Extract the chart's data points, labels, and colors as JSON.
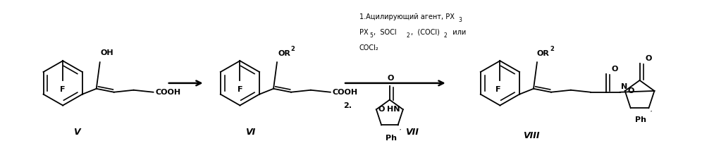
{
  "bg_color": "#ffffff",
  "fig_width": 9.96,
  "fig_height": 2.17,
  "dpi": 100,
  "text_color": "#000000",
  "label_V": "V",
  "label_VI": "VI",
  "label_VII": "VII",
  "label_VIII": "VIII",
  "cond_line1": "1.Ацилирующий агент, PX",
  "cond_line1_sub": "3",
  "cond_line2a": "PX",
  "cond_line2a_sub": "5",
  "cond_line2b": ",  SOCl",
  "cond_line2b_sub": "2",
  "cond_line2c": ",  (COCl)",
  "cond_line2c_sub": "2",
  "cond_line2d": "  или",
  "cond_line3": "COCl₂",
  "step2": "2."
}
